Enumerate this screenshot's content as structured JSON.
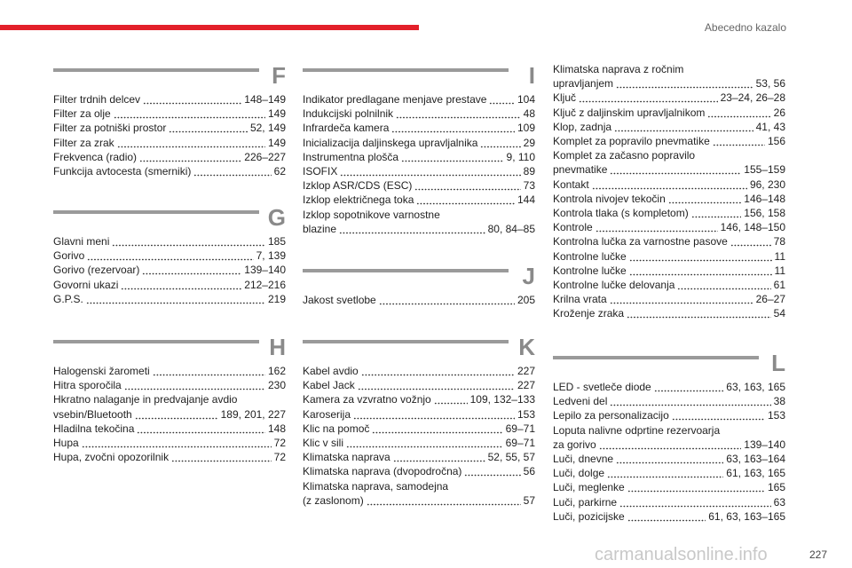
{
  "header": {
    "title": "Abecedno kazalo"
  },
  "columns": [
    {
      "sections": [
        {
          "letter": "F",
          "entries": [
            {
              "lines": [
                "Filter trdnih delcev"
              ],
              "pages": "148–149"
            },
            {
              "lines": [
                "Filter za olje"
              ],
              "pages": "149"
            },
            {
              "lines": [
                "Filter za potniški prostor"
              ],
              "pages": "52, 149"
            },
            {
              "lines": [
                "Filter za zrak"
              ],
              "pages": "149"
            },
            {
              "lines": [
                "Frekvenca (radio)"
              ],
              "pages": "226–227"
            },
            {
              "lines": [
                "Funkcija avtocesta (smerniki)"
              ],
              "pages": "62"
            }
          ]
        },
        {
          "letter": "G",
          "entries": [
            {
              "lines": [
                "Glavni meni"
              ],
              "pages": "185"
            },
            {
              "lines": [
                "Gorivo"
              ],
              "pages": "7, 139"
            },
            {
              "lines": [
                "Gorivo (rezervoar)"
              ],
              "pages": "139–140"
            },
            {
              "lines": [
                "Govorni ukazi"
              ],
              "pages": "212–216"
            },
            {
              "lines": [
                "G.P.S."
              ],
              "pages": "219"
            }
          ]
        },
        {
          "letter": "H",
          "entries": [
            {
              "lines": [
                "Halogenski žarometi"
              ],
              "pages": "162"
            },
            {
              "lines": [
                "Hitra sporočila"
              ],
              "pages": "230"
            },
            {
              "lines": [
                "Hkratno nalaganje in predvajanje avdio",
                "vsebin/Bluetooth"
              ],
              "pages": "189, 201, 227"
            },
            {
              "lines": [
                "Hladilna tekočina"
              ],
              "pages": "148"
            },
            {
              "lines": [
                "Hupa"
              ],
              "pages": "72"
            },
            {
              "lines": [
                "Hupa, zvočni opozorilnik"
              ],
              "pages": "72"
            }
          ]
        }
      ]
    },
    {
      "sections": [
        {
          "letter": "I",
          "entries": [
            {
              "lines": [
                "Indikator predlagane menjave prestave"
              ],
              "pages": "104"
            },
            {
              "lines": [
                "Indukcijski polnilnik"
              ],
              "pages": "48"
            },
            {
              "lines": [
                "Infrardeča kamera"
              ],
              "pages": "109"
            },
            {
              "lines": [
                "Inicializacija daljinskega upravljalnika"
              ],
              "pages": "29"
            },
            {
              "lines": [
                "Instrumentna plošča"
              ],
              "pages": "9, 110"
            },
            {
              "lines": [
                "ISOFIX"
              ],
              "pages": "89"
            },
            {
              "lines": [
                "Izklop ASR/CDS (ESC)"
              ],
              "pages": "73"
            },
            {
              "lines": [
                "Izklop električnega toka"
              ],
              "pages": "144"
            },
            {
              "lines": [
                "Izklop sopotnikove varnostne",
                "blazine"
              ],
              "pages": "80, 84–85"
            }
          ]
        },
        {
          "letter": "J",
          "entries": [
            {
              "lines": [
                "Jakost svetlobe"
              ],
              "pages": "205"
            }
          ]
        },
        {
          "letter": "K",
          "entries": [
            {
              "lines": [
                "Kabel avdio"
              ],
              "pages": "227"
            },
            {
              "lines": [
                "Kabel Jack"
              ],
              "pages": "227"
            },
            {
              "lines": [
                "Kamera za vzvratno vožnjo"
              ],
              "pages": "109, 132–133"
            },
            {
              "lines": [
                "Karoserija"
              ],
              "pages": "153"
            },
            {
              "lines": [
                "Klic na pomoč"
              ],
              "pages": "69–71"
            },
            {
              "lines": [
                "Klic v sili"
              ],
              "pages": "69–71"
            },
            {
              "lines": [
                "Klimatska naprava"
              ],
              "pages": "52, 55, 57"
            },
            {
              "lines": [
                "Klimatska naprava (dvopodročna)"
              ],
              "pages": "56"
            },
            {
              "lines": [
                "Klimatska naprava, samodejna",
                "(z zaslonom)"
              ],
              "pages": "57"
            }
          ]
        }
      ]
    },
    {
      "sections": [
        {
          "entries": [
            {
              "lines": [
                "Klimatska naprava z ročnim",
                "upravljanjem"
              ],
              "pages": "53, 56"
            },
            {
              "lines": [
                "Ključ"
              ],
              "pages": "23–24, 26–28"
            },
            {
              "lines": [
                "Ključ z daljinskim upravljalnikom"
              ],
              "pages": "26"
            },
            {
              "lines": [
                "Klop, zadnja"
              ],
              "pages": "41, 43"
            },
            {
              "lines": [
                "Komplet za popravilo pnevmatike"
              ],
              "pages": "156"
            },
            {
              "lines": [
                "Komplet za začasno popravilo",
                "pnevmatike"
              ],
              "pages": "155–159"
            },
            {
              "lines": [
                "Kontakt"
              ],
              "pages": "96, 230"
            },
            {
              "lines": [
                "Kontrola nivojev tekočin"
              ],
              "pages": "146–148"
            },
            {
              "lines": [
                "Kontrola tlaka (s kompletom)"
              ],
              "pages": "156, 158"
            },
            {
              "lines": [
                "Kontrole"
              ],
              "pages": "146, 148–150"
            },
            {
              "lines": [
                "Kontrolna lučka za varnostne pasove"
              ],
              "pages": "78"
            },
            {
              "lines": [
                "Kontrolne lučke"
              ],
              "pages": "11"
            },
            {
              "lines": [
                "Kontrolne lučke"
              ],
              "pages": "11"
            },
            {
              "lines": [
                "Kontrolne lučke delovanja"
              ],
              "pages": "61"
            },
            {
              "lines": [
                "Krilna vrata"
              ],
              "pages": "26–27"
            },
            {
              "lines": [
                "Kroženje zraka"
              ],
              "pages": "54"
            }
          ]
        },
        {
          "letter": "L",
          "entries": [
            {
              "lines": [
                "LED - svetleče diode"
              ],
              "pages": "63, 163, 165"
            },
            {
              "lines": [
                "Ledveni del"
              ],
              "pages": "38"
            },
            {
              "lines": [
                "Lepilo za personalizacijo"
              ],
              "pages": "153"
            },
            {
              "lines": [
                "Loputa nalivne odprtine rezervoarja",
                "za gorivo"
              ],
              "pages": "139–140"
            },
            {
              "lines": [
                "Luči, dnevne"
              ],
              "pages": "63, 163–164"
            },
            {
              "lines": [
                "Luči, dolge"
              ],
              "pages": "61, 163, 165"
            },
            {
              "lines": [
                "Luči, meglenke"
              ],
              "pages": "165"
            },
            {
              "lines": [
                "Luči, parkirne"
              ],
              "pages": "63"
            },
            {
              "lines": [
                "Luči, pozicijske"
              ],
              "pages": "61, 63, 163–165"
            }
          ]
        }
      ]
    }
  ],
  "footer": {
    "page": "227",
    "watermark": "carmanualsonline.info"
  }
}
